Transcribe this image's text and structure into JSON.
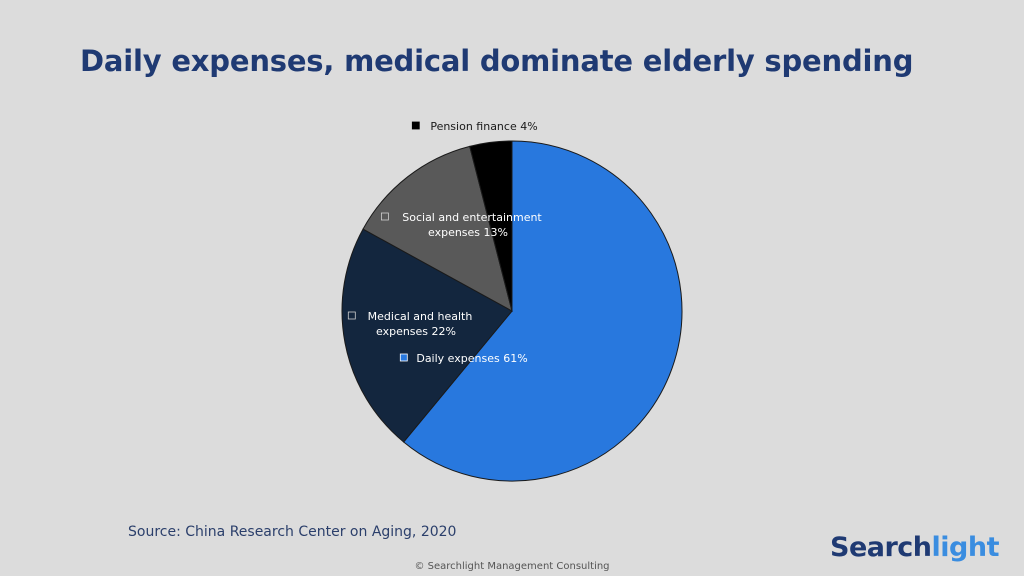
{
  "title": "Daily expenses, medical dominate elderly spending",
  "source": "Source: China Research Center on Aging, 2020",
  "copyright": "©  Searchlight Management Consulting",
  "logo": {
    "part1": "Search",
    "part2": "light"
  },
  "colors": {
    "title": "#1f3a73",
    "daily": "#2878de",
    "medical": "#13263e",
    "social": "#595959",
    "pension": "#000000"
  },
  "chart_data": {
    "type": "pie",
    "title": "",
    "start": "12 o'clock, clockwise",
    "slices": [
      {
        "key": "daily",
        "lines": [
          "Daily expenses 61%"
        ],
        "value": 61,
        "color": "#2878de",
        "marker": "#2878de",
        "text": "#ffffff"
      },
      {
        "key": "medical",
        "lines": [
          "Medical and health",
          "expenses 22%"
        ],
        "value": 22,
        "color": "#13263e",
        "marker": "#13263e",
        "text": "#ffffff"
      },
      {
        "key": "social",
        "lines": [
          "Social and entertainment",
          "expenses 13%"
        ],
        "value": 13,
        "color": "#595959",
        "marker": "#595959",
        "text": "#ffffff"
      },
      {
        "key": "pension",
        "lines": [
          "Pension finance 4%"
        ],
        "value": 4,
        "color": "#000000",
        "marker": "#000000",
        "text": "#1a1a1a"
      }
    ]
  }
}
